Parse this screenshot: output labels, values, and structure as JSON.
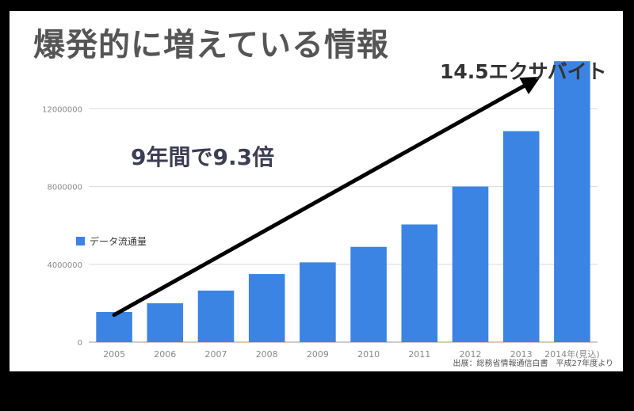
{
  "slide": {
    "title": "爆発的に増えている情報",
    "callout": "9年間で9.3倍",
    "peak_label": "14.5エクサバイト",
    "source": "出展：総務省情報通信白書　平成27年度より"
  },
  "chart_data": {
    "type": "bar",
    "categories": [
      "2005",
      "2006",
      "2007",
      "2008",
      "2009",
      "2010",
      "2011",
      "2012",
      "2013",
      "2014年(見込)"
    ],
    "series": [
      {
        "name": "データ流通量",
        "values": [
          1550000,
          2000000,
          2650000,
          3500000,
          4100000,
          4900000,
          6050000,
          8000000,
          10850000,
          14450000
        ]
      }
    ],
    "ylim": [
      0,
      14500000
    ],
    "yticks": [
      "0",
      "4000000",
      "8000000",
      "12000000"
    ],
    "ytick_values": [
      0,
      4000000,
      8000000,
      12000000
    ],
    "grid": true,
    "legend": "left",
    "bar_color": "#3b84e4",
    "arrow": {
      "from": [
        "2005",
        1400000
      ],
      "to": [
        "2014年(見込)",
        13650000
      ],
      "color": "#000000"
    }
  }
}
